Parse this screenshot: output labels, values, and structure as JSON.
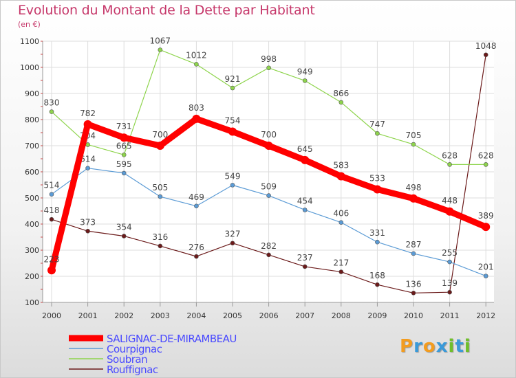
{
  "title": "Evolution du Montant de la Dette par Habitant",
  "subtitle": "(en €)",
  "logo": {
    "text": "Proxiti",
    "colors": [
      "#f39c1f",
      "#3a9ad9",
      "#f39c1f",
      "#3a9ad9",
      "#6fbf2a",
      "#3a9ad9",
      "#6fbf2a"
    ]
  },
  "chart_data": {
    "type": "line",
    "x": [
      "2000",
      "2001",
      "2002",
      "2003",
      "2004",
      "2005",
      "2006",
      "2007",
      "2008",
      "2009",
      "2010",
      "2011",
      "2012"
    ],
    "ylim": [
      100,
      1100
    ],
    "yticks": [
      100,
      200,
      300,
      400,
      500,
      600,
      700,
      800,
      900,
      1000,
      1100
    ],
    "grid": true,
    "legend_position": "bottom-left",
    "series": [
      {
        "name": "Rouffignac",
        "color": "#6b1a1a",
        "values": [
          418,
          373,
          354,
          316,
          276,
          327,
          282,
          237,
          217,
          168,
          136,
          139,
          1048
        ]
      },
      {
        "name": "Soubran",
        "color": "#8ed44c",
        "values": [
          830,
          704,
          665,
          1067,
          1012,
          921,
          998,
          949,
          866,
          747,
          705,
          628,
          628
        ]
      },
      {
        "name": "Courpignac",
        "color": "#5b9bd5",
        "values": [
          514,
          614,
          595,
          505,
          469,
          549,
          509,
          454,
          406,
          331,
          287,
          255,
          201
        ]
      },
      {
        "name": "SALIGNAC-DE-MIRAMBEAU",
        "color": "#ff0000",
        "values": [
          223,
          782,
          731,
          700,
          803,
          754,
          700,
          645,
          583,
          533,
          498,
          448,
          389
        ]
      }
    ],
    "legend_order": [
      "SALIGNAC-DE-MIRAMBEAU",
      "Courpignac",
      "Soubran",
      "Rouffignac"
    ]
  }
}
